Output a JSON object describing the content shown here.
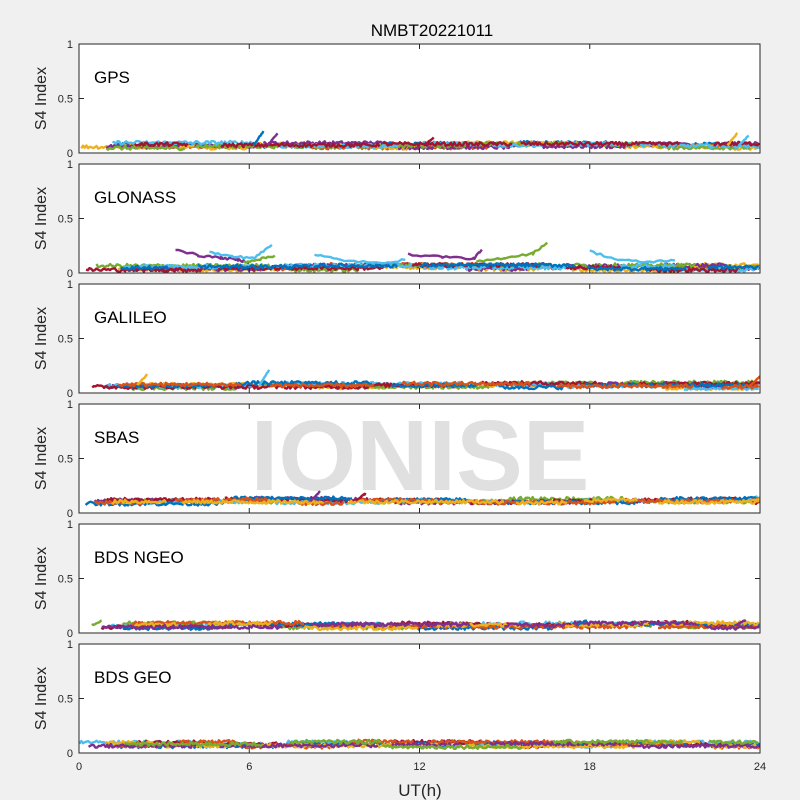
{
  "figure": {
    "title": "NMBT20221011",
    "watermark": "IONISE",
    "xlabel": "UT(h)",
    "xticks": [
      "0",
      "6",
      "12",
      "18",
      "24"
    ],
    "ylabel": "S4 Index",
    "yticks": [
      "0",
      "0.5",
      "1"
    ]
  },
  "colors": [
    "#0072BD",
    "#D95319",
    "#EDB120",
    "#7E2F8E",
    "#77AC30",
    "#4DBEEE",
    "#A2142F"
  ],
  "chart_data": [
    {
      "type": "line",
      "panel": "GPS",
      "xlim": [
        0,
        24
      ],
      "ylim": [
        0,
        1
      ],
      "baseline_s4": 0.07,
      "notable_peaks": [
        [
          6.5,
          0.2
        ],
        [
          7.0,
          0.18
        ],
        [
          12.5,
          0.14
        ],
        [
          23.2,
          0.18
        ],
        [
          23.6,
          0.16
        ]
      ]
    },
    {
      "type": "line",
      "panel": "GLONASS",
      "xlim": [
        0,
        24
      ],
      "ylim": [
        0,
        1
      ],
      "baseline_s4": 0.05,
      "arcs": [
        {
          "color_index": 3,
          "x": [
            3.4,
            4.2,
            5.0,
            5.6,
            6.0
          ],
          "y": [
            0.22,
            0.16,
            0.14,
            0.12,
            0.1
          ]
        },
        {
          "color_index": 5,
          "x": [
            4.6,
            5.4,
            6.2,
            6.8
          ],
          "y": [
            0.19,
            0.15,
            0.14,
            0.26
          ]
        },
        {
          "color_index": 4,
          "x": [
            5.8,
            6.4,
            6.9
          ],
          "y": [
            0.1,
            0.13,
            0.16
          ]
        },
        {
          "color_index": 5,
          "x": [
            8.3,
            9.2,
            10.5,
            11.5
          ],
          "y": [
            0.17,
            0.12,
            0.09,
            0.12
          ]
        },
        {
          "color_index": 3,
          "x": [
            11.6,
            12.8,
            13.9,
            14.2
          ],
          "y": [
            0.17,
            0.15,
            0.13,
            0.21
          ]
        },
        {
          "color_index": 4,
          "x": [
            14.0,
            15.0,
            16.0,
            16.5
          ],
          "y": [
            0.1,
            0.14,
            0.18,
            0.28
          ]
        },
        {
          "color_index": 5,
          "x": [
            18.0,
            19.0,
            20.0,
            21.0
          ],
          "y": [
            0.2,
            0.12,
            0.1,
            0.12
          ]
        }
      ]
    },
    {
      "type": "line",
      "panel": "GALILEO",
      "xlim": [
        0,
        24
      ],
      "ylim": [
        0,
        1
      ],
      "baseline_s4": 0.07,
      "notable_peaks": [
        [
          2.4,
          0.17
        ],
        [
          6.7,
          0.21
        ],
        [
          24.0,
          0.15
        ]
      ]
    },
    {
      "type": "line",
      "panel": "SBAS",
      "xlim": [
        0,
        24
      ],
      "ylim": [
        0,
        1
      ],
      "baseline_s4": 0.11,
      "notable_peaks": [
        [
          8.5,
          0.2
        ],
        [
          10.1,
          0.18
        ],
        [
          24.0,
          0.13
        ]
      ]
    },
    {
      "type": "line",
      "panel": "BDS NGEO",
      "xlim": [
        0,
        24
      ],
      "ylim": [
        0,
        1
      ],
      "baseline_s4": 0.07,
      "notable_peaks": [
        [
          0.8,
          0.11
        ],
        [
          17.9,
          0.12
        ],
        [
          23.5,
          0.12
        ]
      ]
    },
    {
      "type": "line",
      "panel": "BDS GEO",
      "xlim": [
        0,
        24
      ],
      "ylim": [
        0,
        1
      ],
      "baseline_s4": 0.08,
      "notable_peaks": []
    }
  ]
}
